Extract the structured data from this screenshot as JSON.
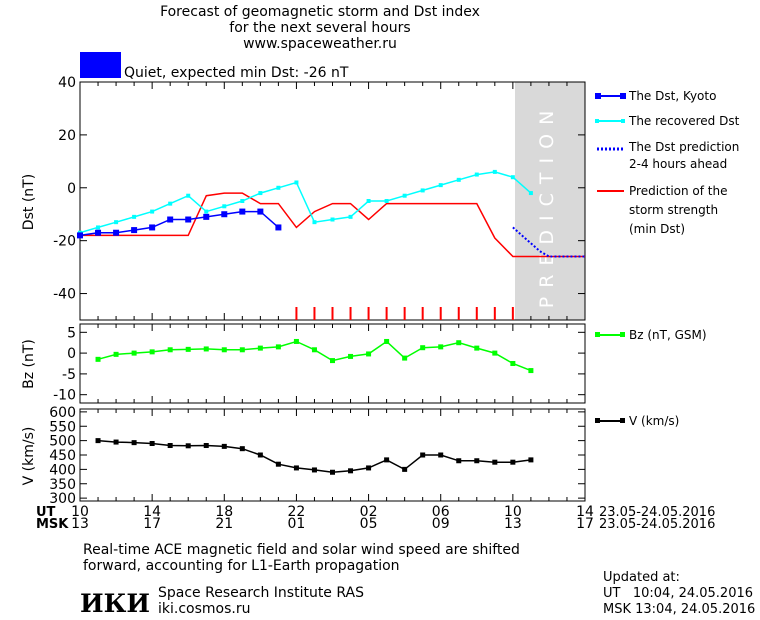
{
  "header": {
    "line1": "Forecast of geomagnetic storm and Dst index",
    "line2": "for the next several hours",
    "line3": "www.spaceweather.ru"
  },
  "status": {
    "text": "Quiet, expected min Dst: -26 nT",
    "color": "#0000ff"
  },
  "colors": {
    "dst_kyoto": "#0000ff",
    "dst_recovered": "#00ffff",
    "dst_prediction": "#0000ff",
    "storm_strength": "#ff0000",
    "bz": "#00ff00",
    "v": "#000000",
    "prediction_band": "#d9d9d9"
  },
  "legend": {
    "dst_kyoto": "The Dst, Kyoto",
    "dst_recovered": "The recovered Dst",
    "dst_pred_1": "The Dst prediction",
    "dst_pred_2": "2-4 hours ahead",
    "storm_1": "Prediction of the",
    "storm_2": "storm strength",
    "storm_3": "(min Dst)",
    "bz": "Bz (nT, GSM)",
    "v": "V (km/s)"
  },
  "prediction_label": "PREDICTION",
  "time_axis": {
    "ut_label": "UT",
    "msk_label": "MSK",
    "ut_ticks": [
      "10",
      "14",
      "18",
      "22",
      "02",
      "06",
      "10",
      "14"
    ],
    "msk_ticks": [
      "13",
      "17",
      "21",
      "01",
      "05",
      "09",
      "13",
      "17"
    ],
    "ut_range": "23.05-24.05.2016",
    "msk_range": "23.05-24.05.2016"
  },
  "footer": {
    "note1": "Real-time ACE magnetic field and solar wind speed are shifted",
    "note2": "forward, accounting for L1-Earth propagation",
    "logo_text": "ИКИ",
    "institute": "Space Research Institute RAS",
    "site": "iki.cosmos.ru",
    "updated_label": "Updated at:",
    "updated_ut": "UT   10:04, 24.05.2016",
    "updated_msk": "MSK 13:04, 24.05.2016"
  },
  "chart_data": [
    {
      "type": "line",
      "ylabel": "Dst (nT)",
      "xlim_hours": [
        0,
        28
      ],
      "ylim": [
        -50,
        40
      ],
      "yticks": [
        40,
        20,
        0,
        -20,
        -40
      ],
      "prediction_start_hour": 24.2,
      "series": [
        {
          "name": "The Dst, Kyoto",
          "x": [
            0,
            1,
            2,
            3,
            4,
            5,
            6,
            7,
            8,
            9,
            10,
            11
          ],
          "y": [
            -18,
            -17,
            -17,
            -16,
            -15,
            -12,
            -12,
            -11,
            -10,
            -9,
            -9,
            -15
          ]
        },
        {
          "name": "The recovered Dst",
          "x": [
            0,
            1,
            2,
            3,
            4,
            5,
            6,
            7,
            8,
            9,
            10,
            11,
            12,
            13,
            14,
            15,
            16,
            17,
            18,
            19,
            20,
            21,
            22,
            23,
            24,
            25
          ],
          "y": [
            -17,
            -15,
            -13,
            -11,
            -9,
            -6,
            -3,
            -9,
            -7,
            -5,
            -2,
            0,
            2,
            -13,
            -12,
            -11,
            -5,
            -5,
            -3,
            -1,
            1,
            3,
            5,
            6,
            4,
            -2
          ]
        },
        {
          "name": "The Dst prediction 2-4 hours ahead",
          "x": [
            24,
            24.5,
            25,
            25.5,
            26,
            26.5,
            27,
            28
          ],
          "y": [
            -15,
            -18,
            -21,
            -24,
            -26,
            -26,
            -26,
            -26
          ]
        },
        {
          "name": "Prediction of the storm strength (min Dst)",
          "x": [
            0,
            6,
            7,
            8,
            9,
            10,
            11,
            12,
            13,
            14,
            15,
            16,
            17,
            18,
            19,
            20,
            21,
            22,
            23,
            24,
            25,
            26,
            27,
            28
          ],
          "y": [
            -18,
            -18,
            -3,
            -2,
            -2,
            -6,
            -6,
            -15,
            -9,
            -6,
            -6,
            -12,
            -6,
            -6,
            -6,
            -6,
            -6,
            -6,
            -19,
            -26,
            -26,
            -26,
            -26,
            -26
          ]
        }
      ],
      "storm_marker_hours": [
        12,
        13,
        14,
        15,
        16,
        17,
        18,
        19,
        20,
        21,
        22,
        23,
        24
      ]
    },
    {
      "type": "line",
      "ylabel": "Bz (nT)",
      "xlim_hours": [
        0,
        28
      ],
      "ylim": [
        -12,
        7
      ],
      "yticks": [
        5,
        0,
        -5,
        -10
      ],
      "series": [
        {
          "name": "Bz (nT, GSM)",
          "x": [
            1,
            2,
            3,
            4,
            5,
            6,
            7,
            8,
            9,
            10,
            11,
            12,
            13,
            14,
            15,
            16,
            17,
            18,
            19,
            20,
            21,
            22,
            23,
            24,
            25
          ],
          "y": [
            -1.5,
            -0.3,
            0,
            0.3,
            0.8,
            0.9,
            1,
            0.8,
            0.8,
            1.2,
            1.5,
            2.8,
            0.8,
            -1.8,
            -0.8,
            -0.2,
            2.8,
            -1.2,
            1.3,
            1.5,
            2.5,
            1.2,
            0,
            -2.5,
            -4.2
          ]
        }
      ]
    },
    {
      "type": "line",
      "ylabel": "V (km/s)",
      "xlim_hours": [
        0,
        28
      ],
      "ylim": [
        290,
        610
      ],
      "yticks": [
        600,
        550,
        500,
        450,
        400,
        350,
        300
      ],
      "series": [
        {
          "name": "V (km/s)",
          "x": [
            1,
            2,
            3,
            4,
            5,
            6,
            7,
            8,
            9,
            10,
            11,
            12,
            13,
            14,
            15,
            16,
            17,
            18,
            19,
            20,
            21,
            22,
            23,
            24,
            25
          ],
          "y": [
            500,
            495,
            493,
            490,
            483,
            482,
            483,
            480,
            472,
            450,
            418,
            405,
            398,
            390,
            395,
            405,
            433,
            400,
            450,
            450,
            430,
            430,
            425,
            425,
            433
          ]
        }
      ]
    }
  ]
}
